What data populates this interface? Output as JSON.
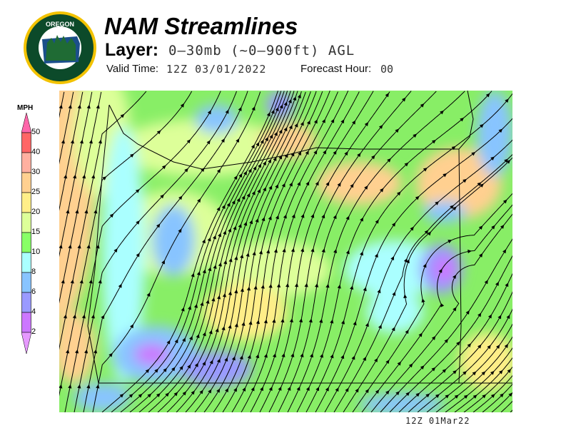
{
  "header": {
    "logo_text": "OREGON DEPARTMENT OF FORESTRY",
    "title": "NAM Streamlines",
    "layer_label": "Layer:",
    "layer_value": "0–30mb (~0–900ft) AGL",
    "valid_label": "Valid Time:",
    "valid_value": "12Z 03/01/2022",
    "forecast_label": "Forecast Hour:",
    "forecast_value": "00"
  },
  "legend": {
    "units": "MPH",
    "ticks": [
      "50",
      "40",
      "30",
      "25",
      "20",
      "15",
      "10",
      "8",
      "6",
      "4",
      "2"
    ],
    "colors": [
      "#ff66aa",
      "#ff6666",
      "#ffb0a0",
      "#ffd090",
      "#ffee88",
      "#ddff99",
      "#88ff66",
      "#aaffff",
      "#88c4ff",
      "#9a9aff",
      "#cc77ff",
      "#e699ff"
    ]
  },
  "map": {
    "background": "#88ee66"
  },
  "footer": "12Z 01Mar22"
}
